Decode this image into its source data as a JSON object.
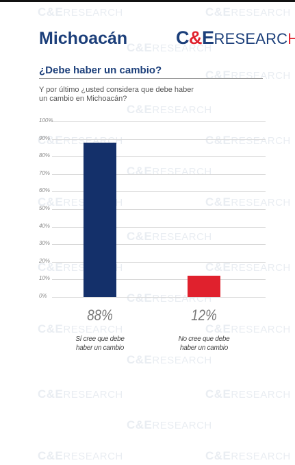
{
  "header": {
    "title": "Michoacán",
    "logo_part1": "C",
    "logo_amp": "&",
    "logo_part2": "E",
    "logo_word": "RESEARC",
    "logo_end": "H"
  },
  "watermark": {
    "brand": "C&E",
    "word": "RESEARCH"
  },
  "question": {
    "heading": "¿Debe haber un cambio?",
    "text": "Y por último ¿usted considera que debe haber un cambio en Michoacán?"
  },
  "chart_data": {
    "type": "bar",
    "categories": [
      "Sí cree que debe haber un cambio",
      "No cree que debe haber un cambio"
    ],
    "category_lines": [
      [
        "Sí cree que debe",
        "haber un cambio"
      ],
      [
        "No cree que debe",
        "haber un cambio"
      ]
    ],
    "values": [
      88,
      12
    ],
    "value_labels": [
      "88%",
      "12%"
    ],
    "colors": [
      "#14306a",
      "#e0212d"
    ],
    "yticks": [
      "0%",
      "10%",
      "20%",
      "30%",
      "40%",
      "50%",
      "60%",
      "70%",
      "80%",
      "90%",
      "100%"
    ],
    "ylim": [
      0,
      100
    ],
    "grid": true
  }
}
